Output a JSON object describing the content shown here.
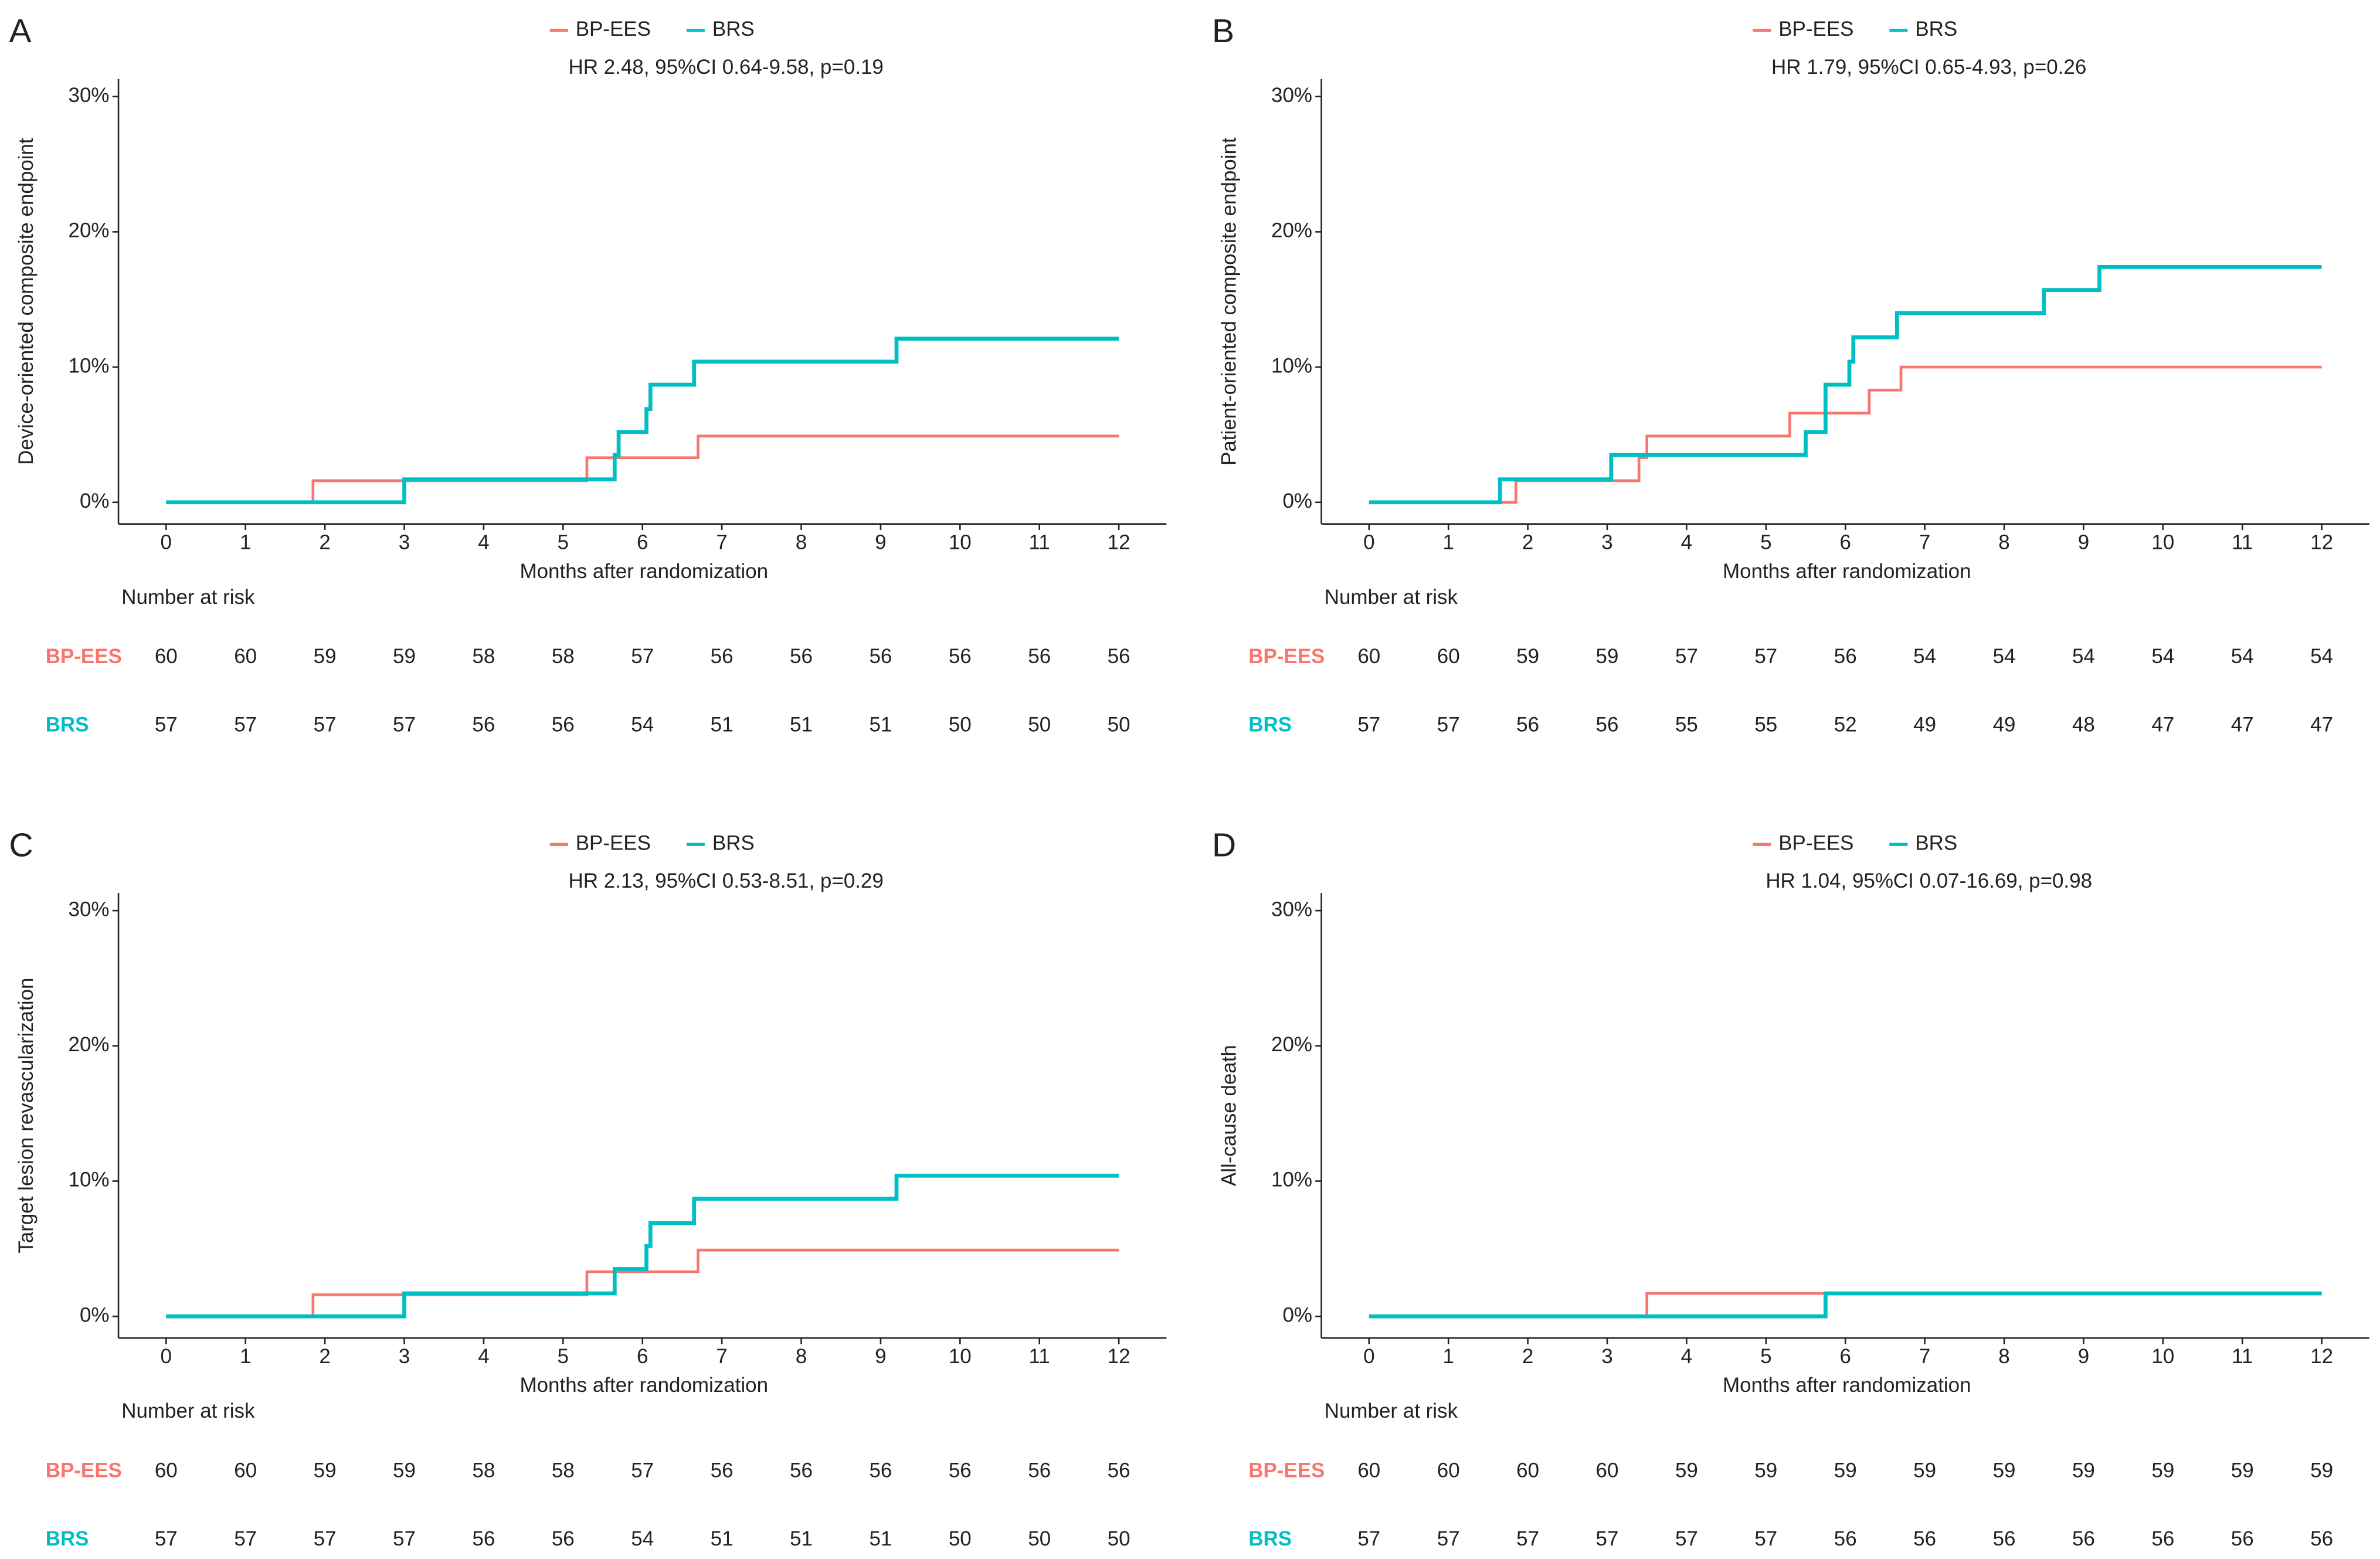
{
  "chart_data": [
    {
      "type": "step",
      "panel": "A",
      "annotation": "HR 2.48, 95%CI 0.64-9.58, p=0.19",
      "ylabel": "Device-oriented composite endpoint",
      "xlabel": "Months after randomization",
      "xlim": [
        -0.6,
        12.6
      ],
      "ylim": [
        -1.6,
        31.3
      ],
      "xticks": [
        0,
        1,
        2,
        3,
        4,
        5,
        6,
        7,
        8,
        9,
        10,
        11,
        12
      ],
      "yticks": [
        {
          "value": 0,
          "label": "0%"
        },
        {
          "value": 10,
          "label": "10%"
        },
        {
          "value": 20,
          "label": "20%"
        },
        {
          "value": 30,
          "label": "30%"
        }
      ],
      "series": [
        {
          "name": "BP-EES",
          "color": "#F8766D",
          "x": [
            0,
            1.85,
            5.3,
            6.7,
            12
          ],
          "values": [
            0,
            1.6,
            3.3,
            4.9,
            4.9
          ]
        },
        {
          "name": "BRS",
          "color": "#00BFC4",
          "x": [
            0,
            3.0,
            5.65,
            5.7,
            6.05,
            6.1,
            6.65,
            9.2,
            12
          ],
          "values": [
            0,
            1.7,
            3.5,
            5.2,
            6.9,
            8.7,
            10.4,
            12.1,
            12.1
          ]
        }
      ],
      "risk_title": "Number at risk",
      "risk": [
        [
          60,
          60,
          59,
          59,
          58,
          58,
          57,
          56,
          56,
          56,
          56,
          56,
          56
        ],
        [
          57,
          57,
          57,
          57,
          56,
          56,
          54,
          51,
          51,
          51,
          50,
          50,
          50
        ]
      ]
    },
    {
      "type": "step",
      "panel": "B",
      "annotation": "HR 1.79, 95%CI 0.65-4.93, p=0.26",
      "ylabel": "Patient-oriented composite endpoint",
      "xlabel": "Months after randomization",
      "xlim": [
        -0.6,
        12.6
      ],
      "ylim": [
        -1.6,
        31.3
      ],
      "xticks": [
        0,
        1,
        2,
        3,
        4,
        5,
        6,
        7,
        8,
        9,
        10,
        11,
        12
      ],
      "yticks": [
        {
          "value": 0,
          "label": "0%"
        },
        {
          "value": 10,
          "label": "10%"
        },
        {
          "value": 20,
          "label": "20%"
        },
        {
          "value": 30,
          "label": "30%"
        }
      ],
      "series": [
        {
          "name": "BP-EES",
          "color": "#F8766D",
          "x": [
            0,
            1.85,
            3.4,
            3.5,
            5.3,
            6.3,
            6.7,
            12
          ],
          "values": [
            0,
            1.6,
            3.3,
            4.9,
            6.6,
            8.3,
            10.0,
            10.0
          ]
        },
        {
          "name": "BRS",
          "color": "#00BFC4",
          "x": [
            0,
            1.65,
            3.05,
            5.5,
            5.75,
            6.05,
            6.1,
            6.65,
            8.5,
            9.2,
            12
          ],
          "values": [
            0,
            1.7,
            3.5,
            5.2,
            8.7,
            10.4,
            12.2,
            14.0,
            15.7,
            17.4,
            17.4
          ]
        }
      ],
      "risk_title": "Number at risk",
      "risk": [
        [
          60,
          60,
          59,
          59,
          57,
          57,
          56,
          54,
          54,
          54,
          54,
          54,
          54
        ],
        [
          57,
          57,
          56,
          56,
          55,
          55,
          52,
          49,
          49,
          48,
          47,
          47,
          47
        ]
      ]
    },
    {
      "type": "step",
      "panel": "C",
      "annotation": "HR 2.13, 95%CI 0.53-8.51, p=0.29",
      "ylabel": "Target lesion revascularization",
      "xlabel": "Months after randomization",
      "xlim": [
        -0.6,
        12.6
      ],
      "ylim": [
        -1.6,
        31.3
      ],
      "xticks": [
        0,
        1,
        2,
        3,
        4,
        5,
        6,
        7,
        8,
        9,
        10,
        11,
        12
      ],
      "yticks": [
        {
          "value": 0,
          "label": "0%"
        },
        {
          "value": 10,
          "label": "10%"
        },
        {
          "value": 20,
          "label": "20%"
        },
        {
          "value": 30,
          "label": "30%"
        }
      ],
      "series": [
        {
          "name": "BP-EES",
          "color": "#F8766D",
          "x": [
            0,
            1.85,
            5.3,
            6.7,
            12
          ],
          "values": [
            0,
            1.6,
            3.3,
            4.9,
            4.9
          ]
        },
        {
          "name": "BRS",
          "color": "#00BFC4",
          "x": [
            0,
            3.0,
            5.65,
            6.05,
            6.1,
            6.65,
            9.2,
            12
          ],
          "values": [
            0,
            1.7,
            3.5,
            5.2,
            6.9,
            8.7,
            10.4,
            10.4
          ]
        }
      ],
      "risk_title": "Number at risk",
      "risk": [
        [
          60,
          60,
          59,
          59,
          58,
          58,
          57,
          56,
          56,
          56,
          56,
          56,
          56
        ],
        [
          57,
          57,
          57,
          57,
          56,
          56,
          54,
          51,
          51,
          51,
          50,
          50,
          50
        ]
      ]
    },
    {
      "type": "step",
      "panel": "D",
      "annotation": "HR 1.04, 95%CI 0.07-16.69, p=0.98",
      "ylabel": "All-cause death",
      "xlabel": "Months after randomization",
      "xlim": [
        -0.6,
        12.6
      ],
      "ylim": [
        -1.6,
        31.3
      ],
      "xticks": [
        0,
        1,
        2,
        3,
        4,
        5,
        6,
        7,
        8,
        9,
        10,
        11,
        12
      ],
      "yticks": [
        {
          "value": 0,
          "label": "0%"
        },
        {
          "value": 10,
          "label": "10%"
        },
        {
          "value": 20,
          "label": "20%"
        },
        {
          "value": 30,
          "label": "30%"
        }
      ],
      "series": [
        {
          "name": "BP-EES",
          "color": "#F8766D",
          "x": [
            0,
            3.5,
            12
          ],
          "values": [
            0,
            1.7,
            1.7
          ]
        },
        {
          "name": "BRS",
          "color": "#00BFC4",
          "x": [
            0,
            5.75,
            12
          ],
          "values": [
            0,
            1.7,
            1.7
          ]
        }
      ],
      "risk_title": "Number at risk",
      "risk": [
        [
          60,
          60,
          60,
          60,
          59,
          59,
          59,
          59,
          59,
          59,
          59,
          59,
          59
        ],
        [
          57,
          57,
          57,
          57,
          57,
          57,
          56,
          56,
          56,
          56,
          56,
          56,
          56
        ]
      ]
    }
  ]
}
